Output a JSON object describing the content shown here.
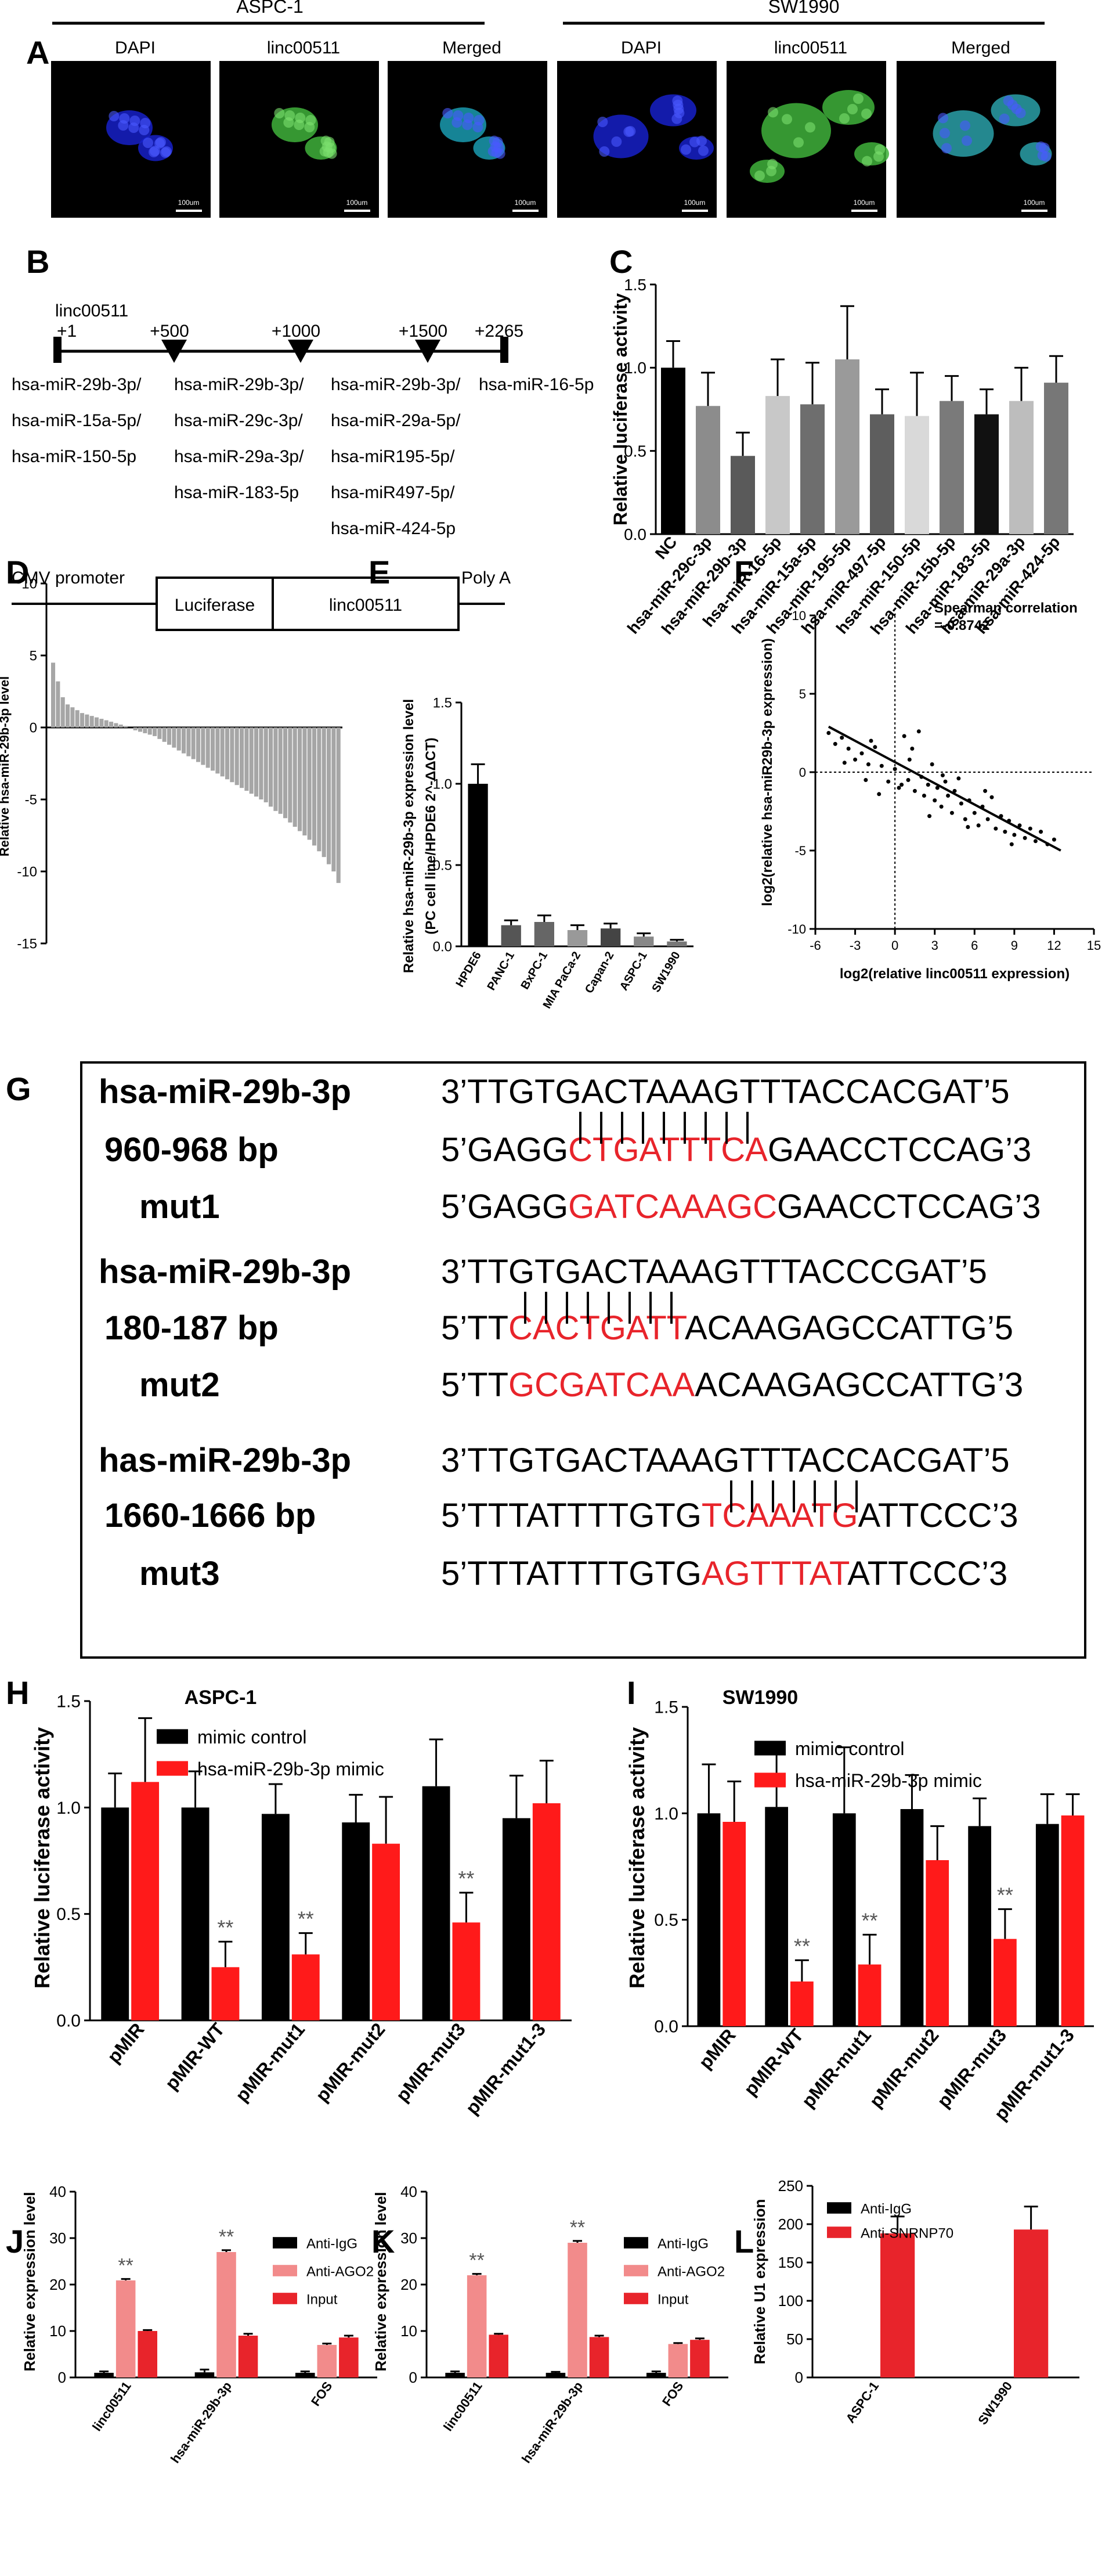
{
  "panel_letters": [
    "A",
    "B",
    "C",
    "D",
    "E",
    "F",
    "G",
    "H",
    "I",
    "J",
    "K",
    "L"
  ],
  "panelA": {
    "groups": [
      "ASPC-1",
      "SW1990"
    ],
    "images": [
      "DAPI",
      "linc00511",
      "Merged",
      "DAPI",
      "linc00511",
      "Merged"
    ],
    "scale_bar": "100um",
    "colors": {
      "dapi": "#1620c8",
      "linc": "#3fb13b",
      "merged_a": "#1a9bb0",
      "merged_b": "#2aa0a8"
    }
  },
  "panelB": {
    "gene": "linc00511",
    "positions": [
      "+1",
      "+500",
      "+1000",
      "+1500",
      "+2265"
    ],
    "sites": [
      [
        "hsa-miR-29b-3p/",
        "hsa-miR-15a-5p/",
        "hsa-miR-150-5p"
      ],
      [
        "hsa-miR-29b-3p/",
        "hsa-miR-29c-3p/",
        "hsa-miR-29a-3p/",
        "hsa-miR-183-5p"
      ],
      [
        "hsa-miR-29b-3p/",
        "hsa-miR-29a-5p/",
        "hsa-miR195-5p/",
        "hsa-miR497-5p/",
        "hsa-miR-424-5p"
      ],
      [
        "hsa-miR-16-5p"
      ]
    ],
    "construct": [
      "CMV promoter",
      "Luciferase",
      "linc00511",
      "Poly A"
    ]
  },
  "chart_data": [
    {
      "id": "C",
      "type": "bar",
      "ylabel": "Relative luciferase activity",
      "ylim": [
        0,
        1.5
      ],
      "yticks": [
        "0.0",
        "0.5",
        "1.0",
        "1.5"
      ],
      "categories": [
        "NC",
        "hsa-miR-29c-3p",
        "hsa-miR-29b-3p",
        "hsa-miR-16-5p",
        "hsa-miR-15a-5p",
        "hsa-miR-195-5p",
        "hsa-miR-497-5p",
        "hsa-miR-150-5p",
        "hsa-miR-15b-5p",
        "hsa-miR-183-5p",
        "hsa-miR-29a-3p",
        "hsa-miR-424-5p"
      ],
      "values": [
        1.0,
        0.77,
        0.47,
        0.83,
        0.78,
        1.05,
        0.72,
        0.71,
        0.8,
        0.72,
        0.8,
        0.91
      ],
      "errors": [
        0.16,
        0.2,
        0.14,
        0.22,
        0.25,
        0.32,
        0.15,
        0.26,
        0.15,
        0.15,
        0.2,
        0.16
      ],
      "colors": [
        "#000000",
        "#8c8c8c",
        "#5a5a5a",
        "#c8c8c8",
        "#6e6e6e",
        "#9a9a9a",
        "#5e5e5e",
        "#d9d9d9",
        "#7a7a7a",
        "#111111",
        "#bdbdbd",
        "#777777"
      ]
    },
    {
      "id": "D",
      "type": "bar",
      "ylabel": "Relative hsa-miR-29b-3p level",
      "ylim": [
        -15,
        10
      ],
      "yticks": [
        "-15",
        "-10",
        "-5",
        "0",
        "5",
        "10"
      ],
      "values_desc": [
        4.5,
        3.2,
        2.1,
        1.6,
        1.4,
        1.2,
        1.0,
        0.9,
        0.8,
        0.7,
        0.6,
        0.5,
        0.4,
        0.3,
        0.2,
        0.1,
        0.0,
        -0.2,
        -0.3,
        -0.4,
        -0.5,
        -0.6,
        -0.8,
        -1.0,
        -1.2,
        -1.4,
        -1.6,
        -1.8,
        -2.0,
        -2.2,
        -2.4,
        -2.6,
        -2.8,
        -3.0,
        -3.2,
        -3.4,
        -3.6,
        -3.8,
        -4.0,
        -4.2,
        -4.4,
        -4.6,
        -4.8,
        -5.0,
        -5.2,
        -5.5,
        -5.8,
        -6.0,
        -6.3,
        -6.6,
        -6.9,
        -7.2,
        -7.5,
        -7.8,
        -8.2,
        -8.6,
        -9.0,
        -9.5,
        -10.0,
        -10.8
      ]
    },
    {
      "id": "E",
      "type": "bar",
      "ylabel": "Relative hsa-miR-29b-3p expression level",
      "ylabel2": "(PC cell line/HPDE6 2^-ΔΔCT)",
      "ylim": [
        0,
        1.5
      ],
      "yticks": [
        "0.0",
        "0.5",
        "1.0",
        "1.5"
      ],
      "categories": [
        "HPDE6",
        "PANC-1",
        "BxPC-1",
        "MIA PaCa-2",
        "Capan-2",
        "ASPC-1",
        "SW1990"
      ],
      "values": [
        1.0,
        0.13,
        0.15,
        0.1,
        0.11,
        0.06,
        0.03
      ],
      "errors": [
        0.12,
        0.03,
        0.04,
        0.03,
        0.03,
        0.02,
        0.01
      ],
      "colors": [
        "#000000",
        "#555555",
        "#666666",
        "#999999",
        "#444444",
        "#888888",
        "#777777"
      ]
    },
    {
      "id": "F",
      "type": "scatter",
      "xlabel": "log2(relative linc00511  expression)",
      "ylabel": "log2(relative hsa-miR29b-3p expression)",
      "xlim": [
        -6,
        15
      ],
      "ylim": [
        -10,
        10
      ],
      "xticks": [
        "-6",
        "-3",
        "0",
        "3",
        "6",
        "9",
        "12",
        "15"
      ],
      "yticks": [
        "-10",
        "-5",
        "0",
        "5",
        "10"
      ],
      "annotation": [
        "Spearman correlation",
        "=-0.8742"
      ],
      "points": [
        [
          -5,
          2.5
        ],
        [
          -4.5,
          1.8
        ],
        [
          -4,
          2.2
        ],
        [
          -3.5,
          1.5
        ],
        [
          -3,
          0.8
        ],
        [
          -2.5,
          1.2
        ],
        [
          -2.2,
          -0.5
        ],
        [
          -2,
          0.5
        ],
        [
          -1.5,
          1.6
        ],
        [
          -1.2,
          -1.4
        ],
        [
          -1,
          0.4
        ],
        [
          -0.5,
          -0.6
        ],
        [
          0,
          0.2
        ],
        [
          0.5,
          -0.8
        ],
        [
          0.7,
          2.3
        ],
        [
          1,
          -0.5
        ],
        [
          1.3,
          1.5
        ],
        [
          1.5,
          -1.2
        ],
        [
          1.8,
          2.6
        ],
        [
          2,
          -0.3
        ],
        [
          2.2,
          -1.5
        ],
        [
          2.5,
          -0.8
        ],
        [
          2.8,
          0.5
        ],
        [
          3,
          -1.8
        ],
        [
          3.2,
          -1.0
        ],
        [
          3.5,
          -2.2
        ],
        [
          3.8,
          -0.6
        ],
        [
          4,
          -1.5
        ],
        [
          4.3,
          -2.6
        ],
        [
          4.5,
          -1.2
        ],
        [
          4.8,
          -0.4
        ],
        [
          5,
          -2.0
        ],
        [
          5.3,
          -3.0
        ],
        [
          5.6,
          -1.8
        ],
        [
          6,
          -2.6
        ],
        [
          6.3,
          -3.4
        ],
        [
          6.6,
          -2.2
        ],
        [
          7,
          -3.0
        ],
        [
          7.3,
          -1.6
        ],
        [
          7.6,
          -3.6
        ],
        [
          8,
          -2.8
        ],
        [
          8.3,
          -3.8
        ],
        [
          8.6,
          -3.1
        ],
        [
          9,
          -4.0
        ],
        [
          9.4,
          -3.4
        ],
        [
          9.8,
          -4.2
        ],
        [
          10.2,
          -3.6
        ],
        [
          10.6,
          -4.4
        ],
        [
          11,
          -3.8
        ],
        [
          11.5,
          -4.6
        ],
        [
          12,
          -4.3
        ],
        [
          0.3,
          -1.0
        ],
        [
          1.1,
          0.8
        ],
        [
          2.6,
          -2.8
        ],
        [
          3.6,
          -0.2
        ],
        [
          5.5,
          -3.5
        ],
        [
          6.8,
          -1.2
        ],
        [
          8.8,
          -4.6
        ],
        [
          -3.8,
          0.6
        ],
        [
          -1.8,
          2.0
        ]
      ],
      "fit": [
        [
          -5,
          2.9
        ],
        [
          12.5,
          -5.0
        ]
      ]
    },
    {
      "id": "H",
      "type": "bar",
      "title": "ASPC-1",
      "ylabel": "Relative luciferase activity",
      "ylim": [
        0,
        1.5
      ],
      "yticks": [
        "0.0",
        "0.5",
        "1.0",
        "1.5"
      ],
      "categories": [
        "pMIR",
        "pMIR-WT",
        "pMIR-mut1",
        "pMIR-mut2",
        "pMIR-mut3",
        "pMIR-mut1-3"
      ],
      "series": [
        {
          "name": "mimic control",
          "color": "#000000",
          "values": [
            1.0,
            1.0,
            0.97,
            0.93,
            1.1,
            0.95
          ],
          "errors": [
            0.16,
            0.17,
            0.14,
            0.13,
            0.22,
            0.2
          ]
        },
        {
          "name": "hsa-miR-29b-3p mimic",
          "color": "#ff1a1a",
          "values": [
            1.12,
            0.25,
            0.31,
            0.83,
            0.46,
            1.02
          ],
          "errors": [
            0.3,
            0.12,
            0.1,
            0.22,
            0.14,
            0.2
          ]
        }
      ],
      "sig": [
        "",
        "**",
        "**",
        "",
        "**",
        ""
      ]
    },
    {
      "id": "I",
      "type": "bar",
      "title": "SW1990",
      "ylabel": "Relative luciferase activity",
      "ylim": [
        0,
        1.5
      ],
      "yticks": [
        "0.0",
        "0.5",
        "1.0",
        "1.5"
      ],
      "categories": [
        "pMIR",
        "pMIR-WT",
        "pMIR-mut1",
        "pMIR-mut2",
        "pMIR-mut3",
        "pMIR-mut1-3"
      ],
      "series": [
        {
          "name": "mimic control",
          "color": "#000000",
          "values": [
            1.0,
            1.03,
            1.0,
            1.02,
            0.94,
            0.95
          ],
          "errors": [
            0.23,
            0.28,
            0.31,
            0.16,
            0.13,
            0.14
          ]
        },
        {
          "name": "hsa-miR-29b-3p mimic",
          "color": "#ff1a1a",
          "values": [
            0.96,
            0.21,
            0.29,
            0.78,
            0.41,
            0.99
          ],
          "errors": [
            0.19,
            0.1,
            0.14,
            0.16,
            0.14,
            0.1
          ]
        }
      ],
      "sig": [
        "",
        "**",
        "**",
        "",
        "**",
        ""
      ]
    },
    {
      "id": "J",
      "type": "bar",
      "ylabel": "Relative expression level",
      "ylim": [
        0,
        40
      ],
      "yticks": [
        "0",
        "10",
        "20",
        "30",
        "40"
      ],
      "categories": [
        "linc00511",
        "hsa-miR-29b-3p",
        "FOS"
      ],
      "series": [
        {
          "name": "Anti-IgG",
          "color": "#000000",
          "values": [
            1.0,
            1.1,
            1.0
          ],
          "errors": [
            0.3,
            0.6,
            0.3
          ]
        },
        {
          "name": "Anti-AGO2",
          "color": "#f28b8b",
          "values": [
            20.9,
            27.0,
            7.0
          ],
          "errors": [
            0.3,
            0.4,
            0.3
          ]
        },
        {
          "name": "Input",
          "color": "#e8242b",
          "values": [
            10.0,
            9.0,
            8.6
          ],
          "errors": [
            0.2,
            0.4,
            0.4
          ]
        }
      ],
      "sig": [
        "**",
        "**",
        ""
      ]
    },
    {
      "id": "K",
      "type": "bar",
      "ylabel": "Relative expression level",
      "ylim": [
        0,
        40
      ],
      "yticks": [
        "0",
        "10",
        "20",
        "30",
        "40"
      ],
      "categories": [
        "linc00511",
        "hsa-miR-29b-3p",
        "FOS"
      ],
      "series": [
        {
          "name": "Anti-IgG",
          "color": "#000000",
          "values": [
            1.0,
            1.0,
            1.0
          ],
          "errors": [
            0.3,
            0.2,
            0.3
          ]
        },
        {
          "name": "Anti-AGO2",
          "color": "#f28b8b",
          "values": [
            22.0,
            29.0,
            7.2
          ],
          "errors": [
            0.3,
            0.4,
            0.2
          ]
        },
        {
          "name": "Input",
          "color": "#e8242b",
          "values": [
            9.2,
            8.7,
            8.1
          ],
          "errors": [
            0.2,
            0.3,
            0.3
          ]
        }
      ],
      "sig": [
        "**",
        "**",
        ""
      ]
    },
    {
      "id": "L",
      "type": "bar",
      "ylabel": "Relative U1 expression",
      "ylim": [
        0,
        250
      ],
      "yticks": [
        "0",
        "50",
        "100",
        "150",
        "200",
        "250"
      ],
      "categories": [
        "ASPC-1",
        "SW1990"
      ],
      "series": [
        {
          "name": "Anti-IgG",
          "color": "#000000",
          "values": [
            1.0,
            1.0
          ],
          "errors": [
            0,
            0
          ]
        },
        {
          "name": "Anti-SNRNP70",
          "color": "#e8242b",
          "values": [
            188,
            193
          ],
          "errors": [
            22,
            30
          ]
        }
      ]
    }
  ],
  "panelG": {
    "rows": [
      {
        "label": "hsa-miR-29b-3p",
        "parts": [
          [
            "3’TTGTGACTAAAGTTTACCACGAT’5",
            false
          ]
        ]
      },
      {
        "label": "960-968 bp",
        "parts": [
          [
            "5’GAGG",
            false
          ],
          [
            "CTGATTTCA",
            true
          ],
          [
            "GAACCTCCAG’3",
            false
          ]
        ]
      },
      {
        "label": "mut1",
        "parts": [
          [
            "5’GAGG",
            false
          ],
          [
            "GATCAAAGC",
            true
          ],
          [
            "GAACCTCCAG’3",
            false
          ]
        ]
      },
      {
        "label": "hsa-miR-29b-3p",
        "parts": [
          [
            "3’TTGTGACTAAAGTTTACCCGAT’5",
            false
          ]
        ]
      },
      {
        "label": "180-187 bp",
        "parts": [
          [
            "5’TT",
            false
          ],
          [
            "CACTGATT",
            true
          ],
          [
            "ACAAGAGCCATTG’5",
            false
          ]
        ]
      },
      {
        "label": "mut2",
        "parts": [
          [
            "5’TT",
            false
          ],
          [
            "GCGATCAA",
            true
          ],
          [
            "ACAAGAGCCATTG’3",
            false
          ]
        ]
      },
      {
        "label": "has-miR-29b-3p",
        "parts": [
          [
            "3’TTGTGACTAAAGTTTACCACGAT’5",
            false
          ]
        ]
      },
      {
        "label": "1660-1666 bp",
        "parts": [
          [
            "5’TTTATTTTGTG",
            false
          ],
          [
            "TCAAATG",
            true
          ],
          [
            "ATTCCC’3",
            false
          ]
        ]
      },
      {
        "label": "mut3",
        "parts": [
          [
            "5’TTTATTTTGTG",
            false
          ],
          [
            "AGTTTAT",
            true
          ],
          [
            "ATTCCC’3",
            false
          ]
        ]
      }
    ],
    "highlight_color": "#e8242b"
  }
}
